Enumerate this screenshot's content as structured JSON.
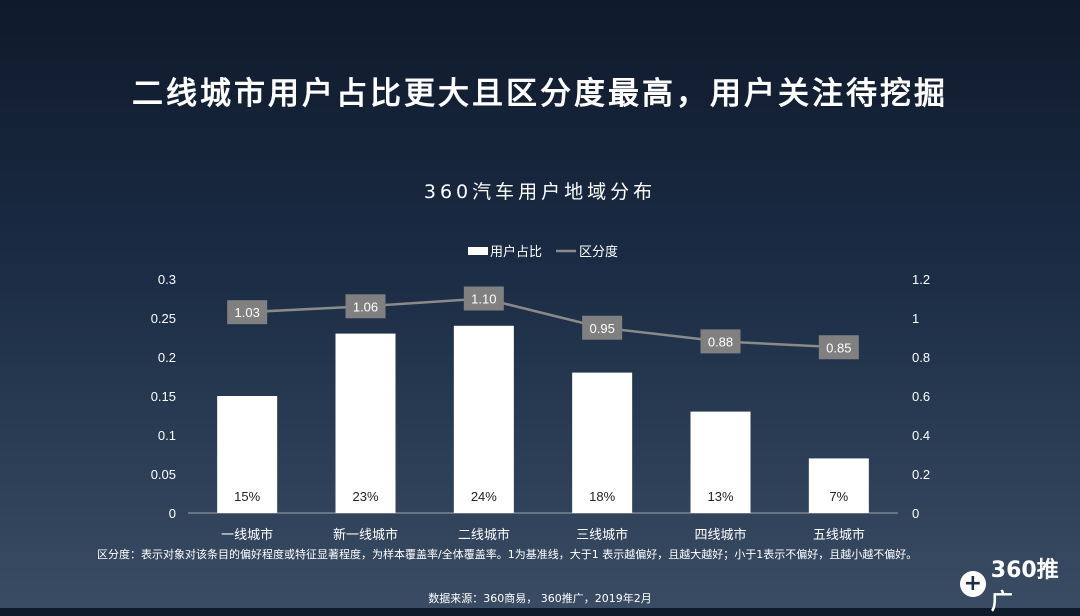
{
  "page": {
    "headline": "二线城市用户占比更大且区分度最高，用户关注待挖掘",
    "note": "区分度：表示对象对该条目的偏好程度或特征显著程度，为样本覆盖率/全体覆盖率。1为基准线，大于1 表示越偏好，且越大越好；小于1表示不偏好，且越小越不偏好。",
    "source": "数据来源：360商易， 360推广，2019年2月",
    "brand": {
      "icon_glyph": "+",
      "text": "360推广"
    }
  },
  "chart_data": {
    "type": "bar",
    "title": "360汽车用户地域分布",
    "categories": [
      "一线城市",
      "新一线城市",
      "二线城市",
      "三线城市",
      "四线城市",
      "五线城市"
    ],
    "series": [
      {
        "name": "用户占比",
        "type": "bar",
        "axis": "left",
        "values": [
          0.15,
          0.23,
          0.24,
          0.18,
          0.13,
          0.07
        ],
        "labels": [
          "15%",
          "23%",
          "24%",
          "18%",
          "13%",
          "7%"
        ],
        "color": "#ffffff"
      },
      {
        "name": "区分度",
        "type": "line",
        "axis": "right",
        "values": [
          1.03,
          1.06,
          1.1,
          0.95,
          0.88,
          0.85
        ],
        "labels": [
          "1.03",
          "1.06",
          "1.10",
          "0.95",
          "0.88",
          "0.85"
        ],
        "color": "#8a8a8a"
      }
    ],
    "left_axis": {
      "ylim": [
        0,
        0.3
      ],
      "ticks": [
        "0",
        "0.05",
        "0.1",
        "0.15",
        "0.2",
        "0.25",
        "0.3"
      ]
    },
    "right_axis": {
      "ylim": [
        0,
        1.2
      ],
      "ticks": [
        "0",
        "0.2",
        "0.4",
        "0.6",
        "0.8",
        "1",
        "1.2"
      ]
    },
    "grid": false,
    "legend_position": "top-center"
  }
}
